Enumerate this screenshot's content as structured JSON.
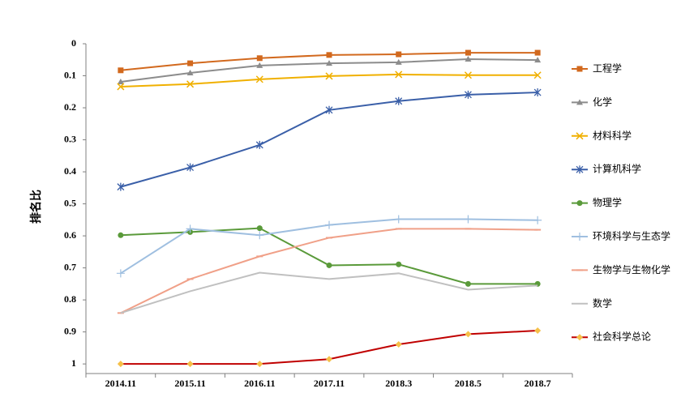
{
  "chart_data": {
    "type": "line",
    "ylabel": "排名比",
    "categories": [
      "2014.11",
      "2015.11",
      "2016.11",
      "2017.11",
      "2018.3",
      "2018.5",
      "2018.7"
    ],
    "ylim": [
      0,
      1.03
    ],
    "yinverted": true,
    "yticks": [
      0,
      0.1,
      0.2,
      0.3,
      0.4,
      0.5,
      0.6,
      0.7,
      0.8,
      0.9,
      1
    ],
    "legend": "right",
    "series": [
      {
        "name": "工程学",
        "color": "#d2691e",
        "marker": "square",
        "values": [
          0.083,
          0.061,
          0.045,
          0.035,
          0.033,
          0.028,
          0.028
        ]
      },
      {
        "name": "化学",
        "color": "#8c8c8c",
        "marker": "triangle",
        "values": [
          0.119,
          0.091,
          0.068,
          0.061,
          0.058,
          0.048,
          0.051
        ]
      },
      {
        "name": "材料科学",
        "color": "#f0b000",
        "marker": "x",
        "values": [
          0.134,
          0.126,
          0.111,
          0.101,
          0.096,
          0.098,
          0.098
        ]
      },
      {
        "name": "计算机科学",
        "color": "#3a5fa8",
        "marker": "asterisk",
        "values": [
          0.447,
          0.386,
          0.316,
          0.207,
          0.179,
          0.159,
          0.152
        ]
      },
      {
        "name": "物理学",
        "color": "#5a9a3a",
        "marker": "circle",
        "values": [
          0.598,
          0.588,
          0.576,
          0.692,
          0.689,
          0.75,
          0.75
        ]
      },
      {
        "name": "环境科学与生态学",
        "color": "#9fbfe0",
        "marker": "plus",
        "values": [
          0.717,
          0.578,
          0.598,
          0.566,
          0.548,
          0.548,
          0.551
        ]
      },
      {
        "name": "生物学与生物化学",
        "color": "#f0a088",
        "marker": "dash",
        "values": [
          0.841,
          0.735,
          0.664,
          0.606,
          0.578,
          0.578,
          0.581
        ]
      },
      {
        "name": "数学",
        "color": "#c0c0c0",
        "marker": "none",
        "values": [
          0.841,
          0.773,
          0.715,
          0.735,
          0.717,
          0.768,
          0.755
        ]
      },
      {
        "name": "社会科学总论",
        "color": "#c00000",
        "marker": "diamond",
        "marker_color": "#f5c048",
        "values": [
          1,
          1,
          1,
          0.985,
          0.939,
          0.907,
          0.896
        ]
      }
    ]
  }
}
